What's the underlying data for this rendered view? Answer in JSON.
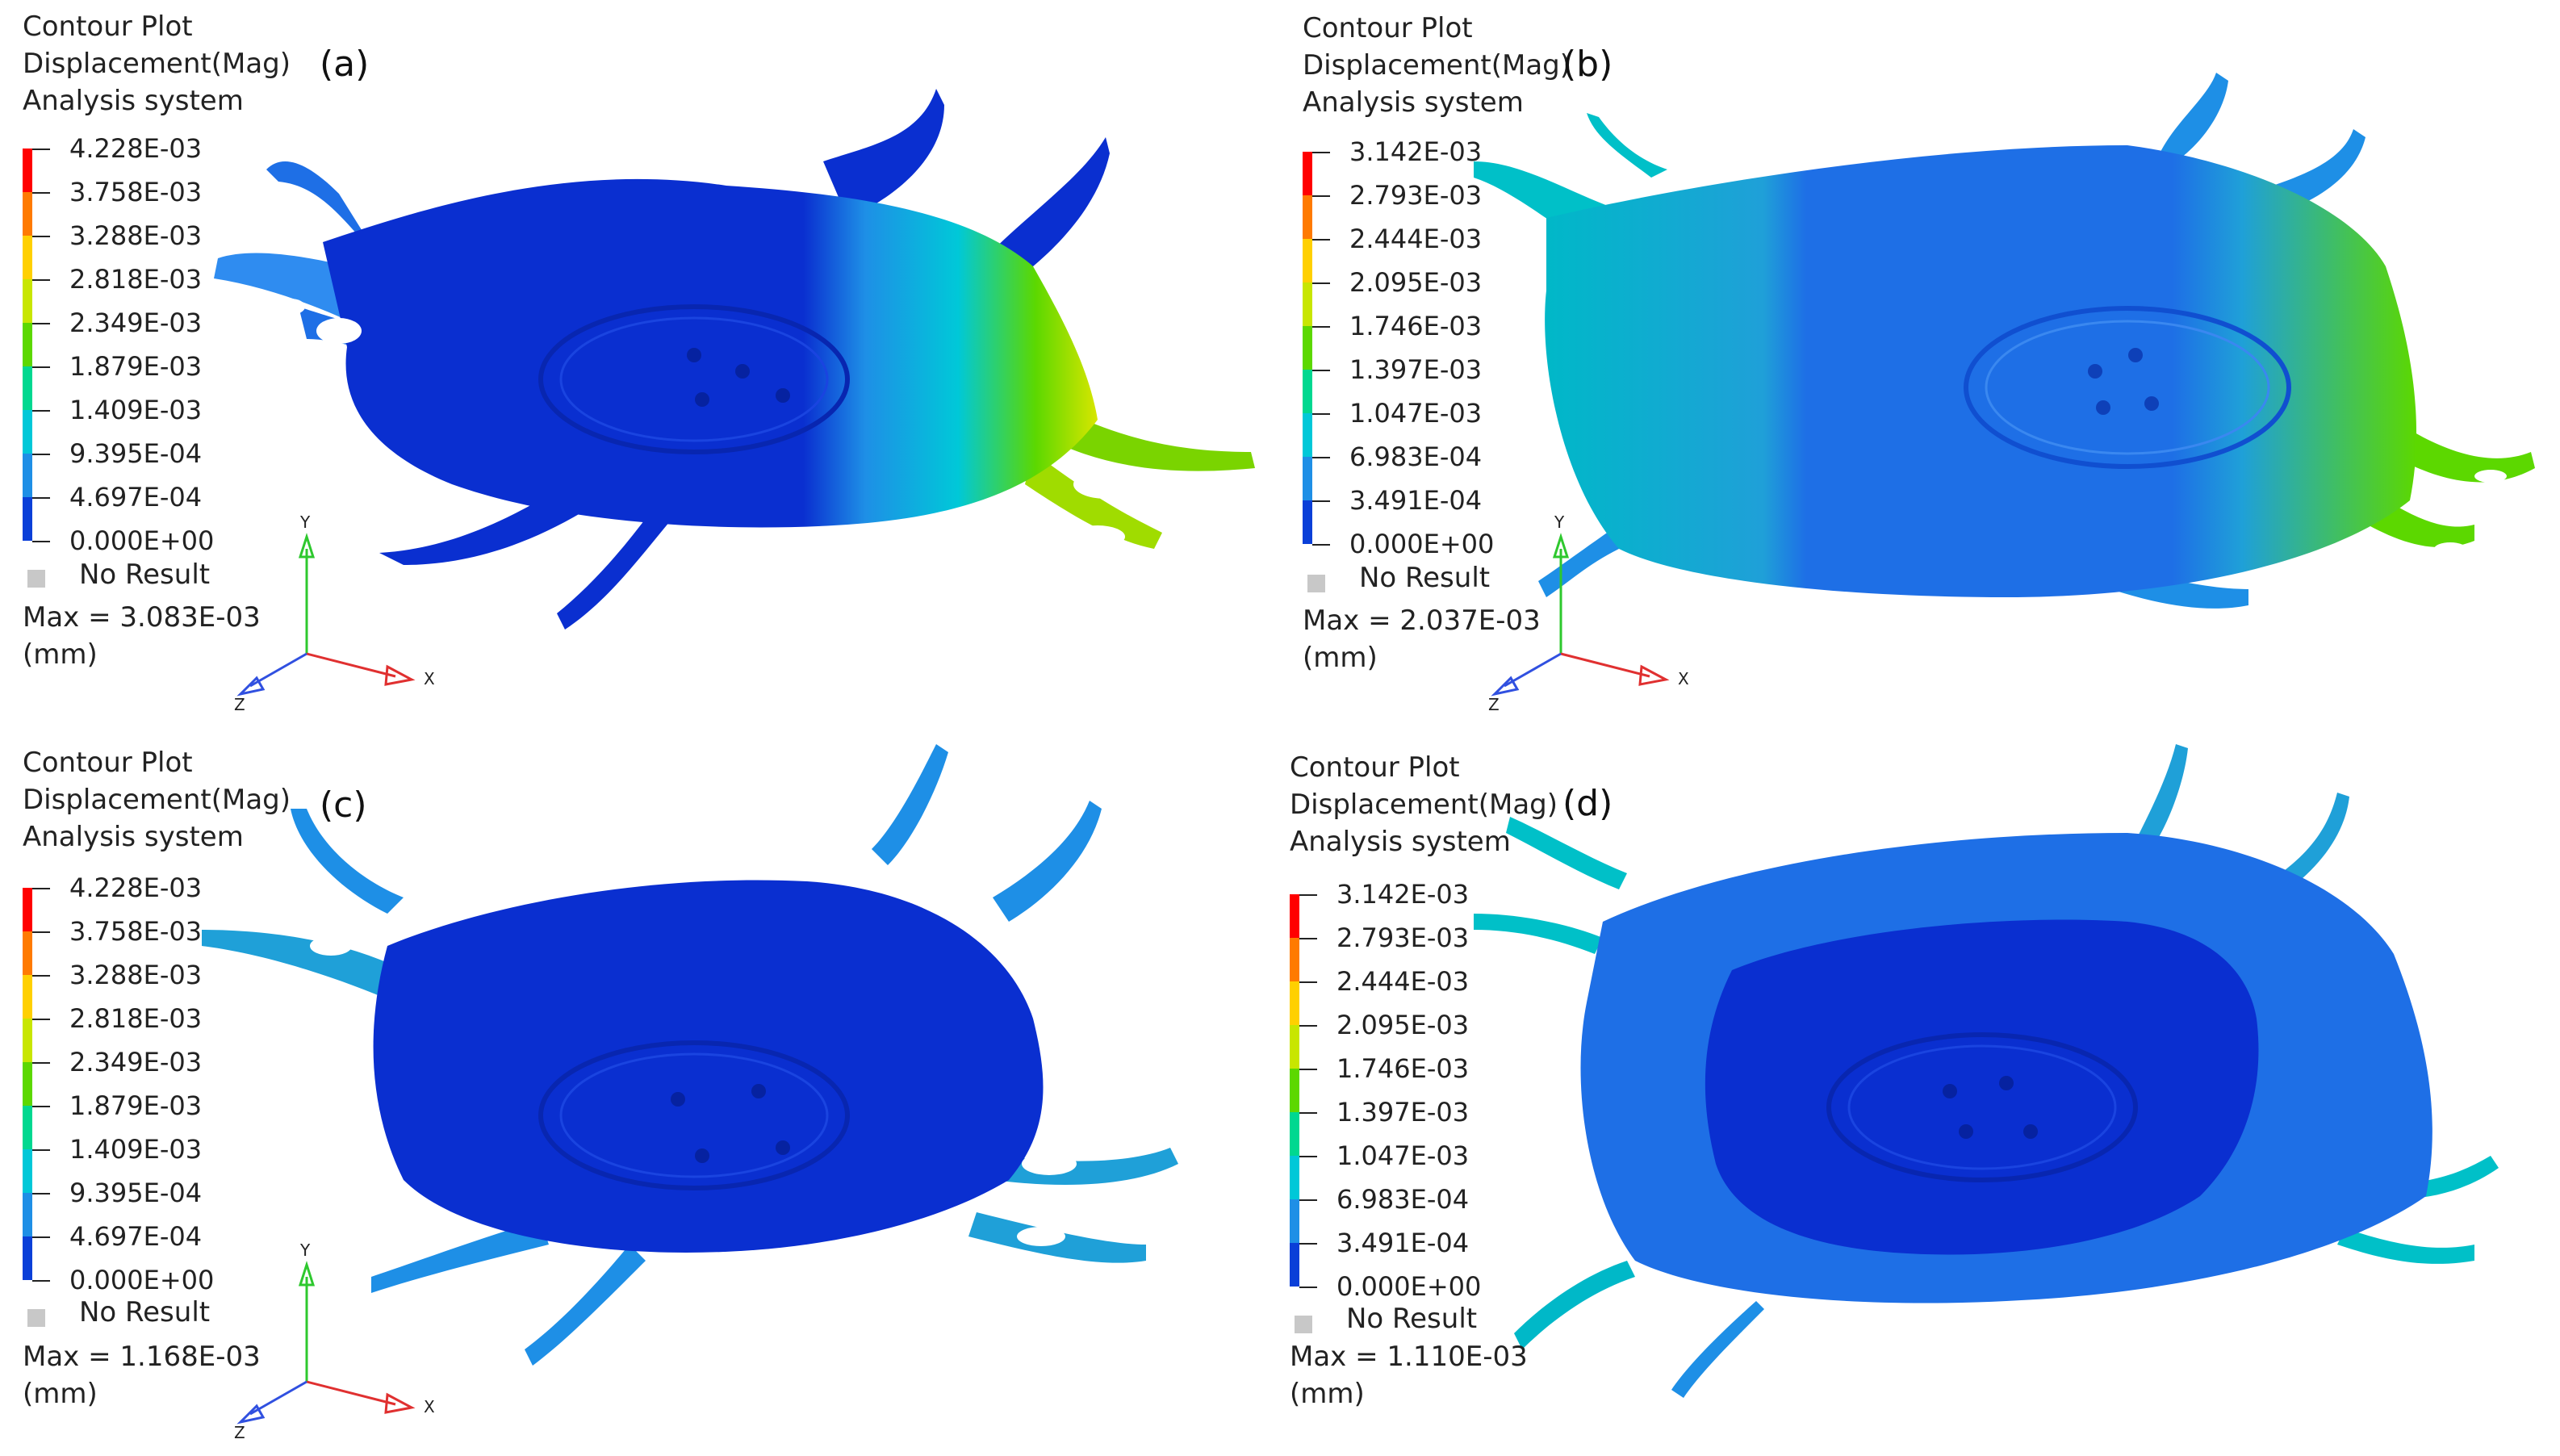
{
  "legend_title": [
    "Contour Plot",
    "Displacement(Mag)",
    "Analysis system"
  ],
  "no_result_label": "No Result",
  "max_prefix": "Max =",
  "unit": "(mm)",
  "axes": {
    "x": "X",
    "y": "Y",
    "z": "Z"
  },
  "legend_colors": [
    "#ff0000",
    "#ff7a00",
    "#ffd000",
    "#c8e600",
    "#5cd800",
    "#00d890",
    "#00c8d8",
    "#1e8fe6",
    "#0a3fd8"
  ],
  "panels": [
    {
      "label": "(a)",
      "levels": [
        "4.228E-03",
        "3.758E-03",
        "3.288E-03",
        "2.818E-03",
        "2.349E-03",
        "1.879E-03",
        "1.409E-03",
        "9.395E-04",
        "4.697E-04",
        "0.000E+00"
      ],
      "max": "3.083E-03"
    },
    {
      "label": "(b)",
      "levels": [
        "3.142E-03",
        "2.793E-03",
        "2.444E-03",
        "2.095E-03",
        "1.746E-03",
        "1.397E-03",
        "1.047E-03",
        "6.983E-04",
        "3.491E-04",
        "0.000E+00"
      ],
      "max": "2.037E-03"
    },
    {
      "label": "(c)",
      "levels": [
        "4.228E-03",
        "3.758E-03",
        "3.288E-03",
        "2.818E-03",
        "2.349E-03",
        "1.879E-03",
        "1.409E-03",
        "9.395E-04",
        "4.697E-04",
        "0.000E+00"
      ],
      "max": "1.168E-03"
    },
    {
      "label": "(d)",
      "levels": [
        "3.142E-03",
        "2.793E-03",
        "2.444E-03",
        "2.095E-03",
        "1.746E-03",
        "1.397E-03",
        "1.047E-03",
        "6.983E-04",
        "3.491E-04",
        "0.000E+00"
      ],
      "max": "1.110E-03"
    }
  ]
}
